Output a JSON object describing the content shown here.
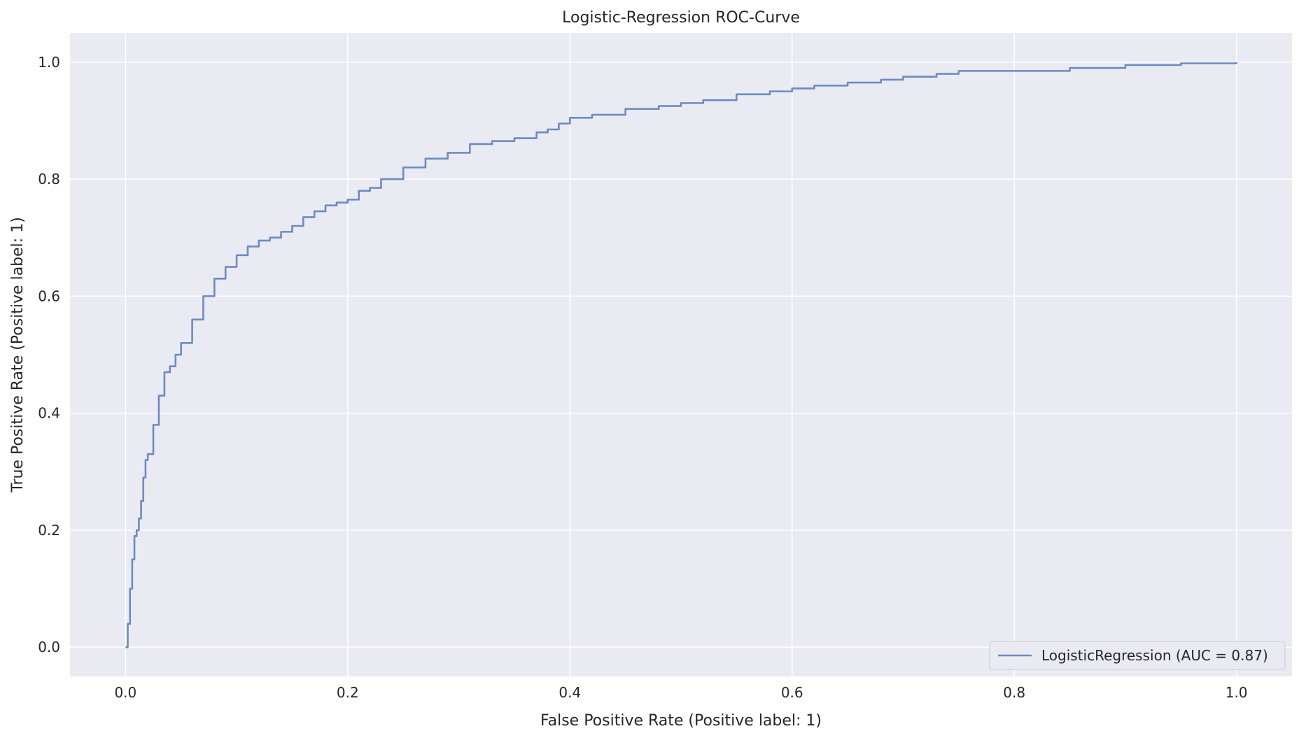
{
  "chart_data": {
    "type": "line",
    "title": "Logistic-Regression ROC-Curve",
    "xlabel": "False Positive Rate (Positive label: 1)",
    "ylabel": "True Positive Rate (Positive label: 1)",
    "xlim": [
      -0.05,
      1.05
    ],
    "ylim": [
      -0.05,
      1.05
    ],
    "xticks": [
      0.0,
      0.2,
      0.4,
      0.6,
      0.8,
      1.0
    ],
    "xtick_labels": [
      "0.0",
      "0.2",
      "0.4",
      "0.6",
      "0.8",
      "1.0"
    ],
    "yticks": [
      0.0,
      0.2,
      0.4,
      0.6,
      0.8,
      1.0
    ],
    "ytick_labels": [
      "0.0",
      "0.2",
      "0.4",
      "0.6",
      "0.8",
      "1.0"
    ],
    "grid": true,
    "legend_position": "lower-right",
    "colors": {
      "plot_background": "#eaeaf2",
      "grid": "#ffffff",
      "series": "#6b8cc2",
      "text": "#262626"
    },
    "series": [
      {
        "name": "LogisticRegression (AUC = 0.87)",
        "x": [
          0.0,
          0.002,
          0.004,
          0.006,
          0.008,
          0.01,
          0.012,
          0.014,
          0.016,
          0.018,
          0.02,
          0.025,
          0.03,
          0.035,
          0.04,
          0.045,
          0.05,
          0.06,
          0.07,
          0.08,
          0.09,
          0.1,
          0.11,
          0.12,
          0.13,
          0.14,
          0.15,
          0.16,
          0.17,
          0.18,
          0.19,
          0.2,
          0.21,
          0.22,
          0.23,
          0.25,
          0.27,
          0.29,
          0.31,
          0.33,
          0.35,
          0.37,
          0.38,
          0.39,
          0.4,
          0.42,
          0.45,
          0.48,
          0.5,
          0.52,
          0.55,
          0.58,
          0.6,
          0.62,
          0.65,
          0.68,
          0.7,
          0.73,
          0.75,
          0.8,
          0.85,
          0.9,
          0.95,
          1.0
        ],
        "y": [
          0.0,
          0.04,
          0.1,
          0.15,
          0.19,
          0.2,
          0.22,
          0.25,
          0.29,
          0.32,
          0.33,
          0.38,
          0.43,
          0.47,
          0.48,
          0.5,
          0.52,
          0.56,
          0.6,
          0.63,
          0.65,
          0.67,
          0.685,
          0.695,
          0.7,
          0.71,
          0.72,
          0.735,
          0.745,
          0.755,
          0.76,
          0.765,
          0.78,
          0.785,
          0.8,
          0.82,
          0.835,
          0.845,
          0.86,
          0.865,
          0.87,
          0.88,
          0.885,
          0.895,
          0.905,
          0.91,
          0.92,
          0.925,
          0.93,
          0.935,
          0.945,
          0.95,
          0.955,
          0.96,
          0.965,
          0.97,
          0.975,
          0.98,
          0.985,
          0.985,
          0.99,
          0.995,
          0.998,
          1.0
        ]
      }
    ]
  }
}
